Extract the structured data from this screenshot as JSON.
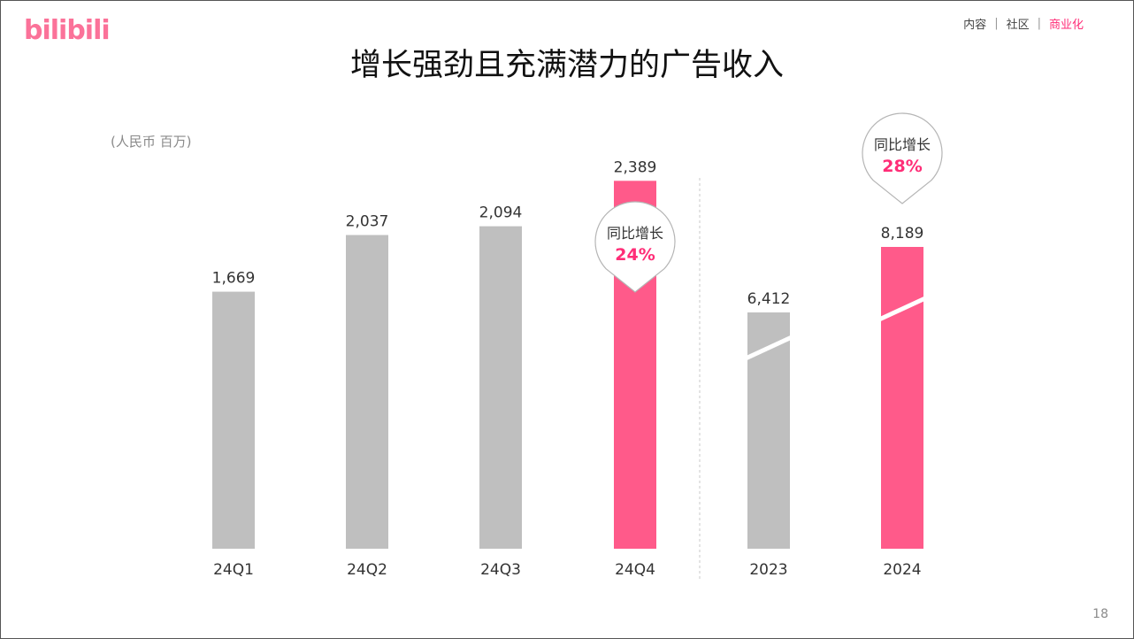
{
  "logo": {
    "text": "bilibili"
  },
  "nav": {
    "items": [
      "内容",
      "社区",
      "商业化"
    ],
    "active_index": 2
  },
  "title": "增长强劲且充满潜力的广告收入",
  "unit_label": "(人民币 百万)",
  "page_number": "18",
  "colors": {
    "accent": "#ff5a8a",
    "neutral_bar": "#bfbfbf",
    "callout_pct": "#ff2d77"
  },
  "chart_data": {
    "type": "bar",
    "ylabel": "(人民币 百万)",
    "groups": [
      {
        "name": "quarterly",
        "categories": [
          "24Q1",
          "24Q2",
          "24Q3",
          "24Q4"
        ],
        "values": [
          1669,
          2037,
          2094,
          2389
        ],
        "labels": [
          "1,669",
          "2,037",
          "2,094",
          "2,389"
        ],
        "highlight": [
          false,
          false,
          false,
          true
        ]
      },
      {
        "name": "annual",
        "categories": [
          "2023",
          "2024"
        ],
        "values": [
          6412,
          8189
        ],
        "labels": [
          "6,412",
          "8,189"
        ],
        "highlight": [
          false,
          true
        ],
        "axis_break": true
      }
    ],
    "callouts": [
      {
        "category": "24Q4",
        "text": "同比增长",
        "value": "24%"
      },
      {
        "category": "2024",
        "text": "同比增长",
        "value": "28%"
      }
    ]
  }
}
